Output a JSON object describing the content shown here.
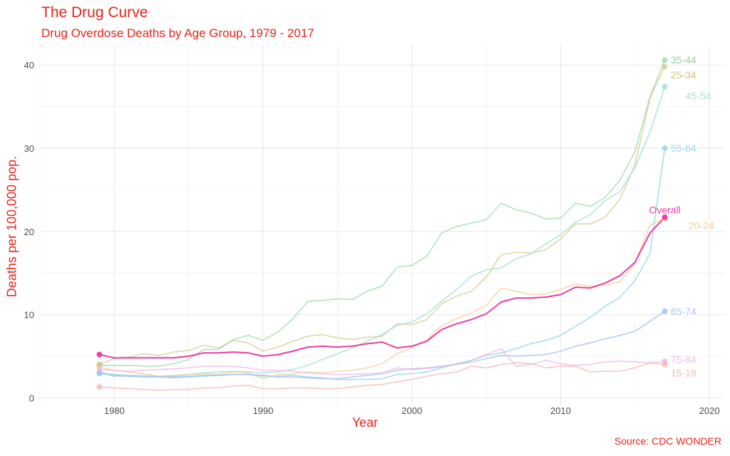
{
  "chart_data": {
    "type": "line",
    "title": "The Drug Curve",
    "subtitle": "Drug Overdose Deaths by Age Group, 1979 - 2017",
    "xlabel": "Year",
    "ylabel": "Deaths per 100,000 pop.",
    "caption": "Source: CDC WONDER",
    "xlim": [
      1975,
      2021
    ],
    "ylim": [
      -1,
      42.5
    ],
    "xticks": [
      1980,
      1990,
      2000,
      2010,
      2020
    ],
    "yticks": [
      0,
      10,
      20,
      30,
      40
    ],
    "grid": true,
    "legend": "direct-labels",
    "years": [
      1979,
      1980,
      1981,
      1982,
      1983,
      1984,
      1985,
      1986,
      1987,
      1988,
      1989,
      1990,
      1991,
      1992,
      1993,
      1994,
      1995,
      1996,
      1997,
      1998,
      1999,
      2000,
      2001,
      2002,
      2003,
      2004,
      2005,
      2006,
      2007,
      2008,
      2009,
      2010,
      2011,
      2012,
      2013,
      2014,
      2015,
      2016,
      2017
    ],
    "series": [
      {
        "name": "35-44",
        "color": "#7fd08d",
        "opacity": 0.6,
        "label_x": 2017.4,
        "label_y": 40.6,
        "values": [
          3.9,
          3.9,
          3.9,
          3.8,
          3.8,
          4.1,
          4.6,
          5.8,
          5.8,
          7.0,
          7.5,
          6.9,
          7.9,
          9.5,
          11.6,
          11.7,
          11.9,
          11.8,
          12.8,
          13.4,
          15.7,
          15.9,
          17.0,
          19.8,
          20.6,
          21.0,
          21.4,
          23.4,
          22.6,
          22.2,
          21.5,
          21.6,
          23.4,
          23.0,
          24.1,
          26.2,
          29.6,
          36.2,
          40.6
        ]
      },
      {
        "name": "25-34",
        "color": "#c9bc6e",
        "opacity": 0.6,
        "label_x": 2017.4,
        "label_y": 38.8,
        "values": [
          4.0,
          4.7,
          4.9,
          5.3,
          5.1,
          5.5,
          5.7,
          6.3,
          6.0,
          6.9,
          6.6,
          5.6,
          6.1,
          6.8,
          7.4,
          7.6,
          7.2,
          7.0,
          7.3,
          7.4,
          8.9,
          8.8,
          9.4,
          11.3,
          12.2,
          12.8,
          14.5,
          17.2,
          17.5,
          17.4,
          17.8,
          19.1,
          20.9,
          20.9,
          21.7,
          23.9,
          28.0,
          36.0,
          39.8
        ]
      },
      {
        "name": "45-54",
        "color": "#9fe0d6",
        "opacity": 0.8,
        "label_x": 2018.4,
        "label_y": 36.3,
        "values": [
          2.9,
          2.8,
          2.7,
          2.7,
          2.6,
          2.7,
          2.8,
          3.0,
          3.1,
          3.2,
          3.1,
          3.0,
          3.1,
          3.4,
          3.9,
          4.6,
          5.3,
          6.0,
          6.8,
          7.6,
          8.7,
          9.1,
          10.1,
          11.6,
          13.0,
          14.6,
          15.4,
          15.6,
          16.7,
          17.3,
          18.5,
          19.6,
          21.1,
          22.0,
          23.7,
          24.8,
          27.7,
          31.9,
          37.4
        ]
      },
      {
        "name": "55-64",
        "color": "#8fd6ea",
        "opacity": 0.8,
        "label_x": 2017.4,
        "label_y": 30.0,
        "values": [
          3.1,
          2.7,
          2.6,
          2.5,
          2.5,
          2.4,
          2.5,
          2.6,
          2.7,
          2.8,
          2.8,
          2.6,
          2.6,
          2.7,
          2.5,
          2.4,
          2.2,
          2.2,
          2.2,
          2.3,
          2.8,
          2.9,
          3.1,
          3.6,
          4.1,
          4.5,
          5.1,
          5.4,
          5.9,
          6.5,
          6.9,
          7.5,
          8.6,
          9.7,
          11.0,
          12.1,
          14.1,
          17.3,
          30.0
        ]
      },
      {
        "name": "Overall",
        "color": "#ee3da3",
        "opacity": 1.0,
        "label_x": 2017,
        "label_y": 22.6,
        "label_anchor": "middle",
        "values": [
          5.2,
          4.8,
          4.8,
          4.8,
          4.8,
          4.8,
          5.0,
          5.4,
          5.4,
          5.5,
          5.4,
          5.0,
          5.2,
          5.6,
          6.1,
          6.2,
          6.1,
          6.2,
          6.5,
          6.7,
          6.0,
          6.2,
          6.8,
          8.2,
          8.9,
          9.4,
          10.1,
          11.5,
          12.0,
          12.0,
          12.1,
          12.4,
          13.3,
          13.2,
          13.8,
          14.7,
          16.3,
          19.8,
          21.7
        ]
      },
      {
        "name": "20-24",
        "color": "#f2c98f",
        "opacity": 0.7,
        "label_x": 2018.6,
        "label_y": 20.7,
        "values": [
          3.7,
          3.3,
          3.1,
          2.9,
          2.6,
          2.6,
          2.8,
          2.9,
          2.8,
          3.1,
          3.0,
          2.3,
          2.8,
          2.9,
          3.1,
          3.0,
          3.2,
          3.3,
          3.6,
          4.1,
          5.3,
          6.0,
          6.9,
          8.7,
          9.5,
          10.2,
          11.1,
          13.2,
          12.8,
          12.4,
          12.5,
          13.0,
          13.7,
          13.4,
          13.5,
          14.0,
          16.1,
          20.8,
          21.5
        ]
      },
      {
        "name": "65-74",
        "color": "#a8bdf2",
        "opacity": 0.8,
        "label_x": 2017.4,
        "label_y": 10.4,
        "values": [
          3.0,
          2.6,
          2.6,
          2.5,
          2.5,
          2.5,
          2.6,
          2.7,
          2.7,
          2.8,
          2.8,
          2.7,
          2.5,
          2.5,
          2.4,
          2.3,
          2.3,
          2.5,
          2.7,
          2.9,
          3.3,
          3.5,
          3.6,
          3.8,
          4.0,
          4.3,
          4.7,
          5.1,
          5.0,
          5.1,
          5.2,
          5.6,
          6.2,
          6.6,
          7.1,
          7.5,
          8.0,
          9.2,
          10.4
        ]
      },
      {
        "name": "75-84",
        "color": "#f0b6ec",
        "opacity": 0.8,
        "label_x": 2017.4,
        "label_y": 4.6,
        "values": [
          3.4,
          3.3,
          3.2,
          3.3,
          3.4,
          3.5,
          3.6,
          3.8,
          3.8,
          3.8,
          3.6,
          3.3,
          3.3,
          3.2,
          3.0,
          2.9,
          2.8,
          2.8,
          2.9,
          3.0,
          3.6,
          3.4,
          3.5,
          3.7,
          4.0,
          4.5,
          5.2,
          5.9,
          3.8,
          4.0,
          4.5,
          4.1,
          3.9,
          4.0,
          4.3,
          4.4,
          4.3,
          4.2,
          4.4
        ]
      },
      {
        "name": "15-19",
        "color": "#f7aeae",
        "opacity": 0.7,
        "label_x": 2017.4,
        "label_y": 3.0,
        "values": [
          1.3,
          1.2,
          1.1,
          1.0,
          0.9,
          1.0,
          1.0,
          1.2,
          1.2,
          1.4,
          1.5,
          1.1,
          1.1,
          1.2,
          1.2,
          1.1,
          1.1,
          1.3,
          1.5,
          1.6,
          1.9,
          2.2,
          2.6,
          2.9,
          3.1,
          3.8,
          3.6,
          4.0,
          4.2,
          4.1,
          3.6,
          3.8,
          3.8,
          3.1,
          3.2,
          3.2,
          3.6,
          4.2,
          4.0
        ]
      }
    ]
  }
}
